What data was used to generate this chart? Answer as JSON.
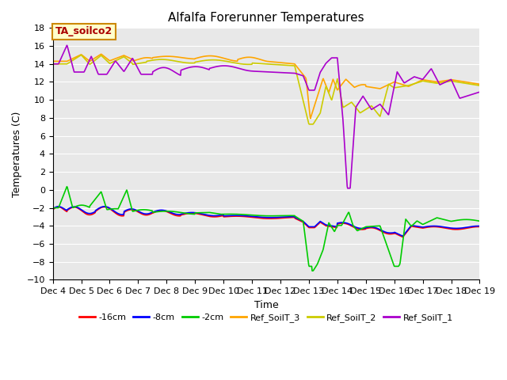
{
  "title": "Alfalfa Forerunner Temperatures",
  "ylabel": "Temperatures (C)",
  "xlabel": "Time",
  "annotation": "TA_soilco2",
  "ylim": [
    -10,
    18
  ],
  "xlim": [
    4,
    19
  ],
  "series": {
    "neg16cm": {
      "label": "-16cm",
      "color": "#FF0000"
    },
    "neg8cm": {
      "label": "-8cm",
      "color": "#0000FF"
    },
    "neg2cm": {
      "label": "-2cm",
      "color": "#00CC00"
    },
    "ref3": {
      "label": "Ref_SoilT_3",
      "color": "#FFA500"
    },
    "ref2": {
      "label": "Ref_SoilT_2",
      "color": "#CCCC00"
    },
    "ref1": {
      "label": "Ref_SoilT_1",
      "color": "#AA00CC"
    }
  },
  "bg_color": "#E8E8E8",
  "grid_color": "#FFFFFF"
}
